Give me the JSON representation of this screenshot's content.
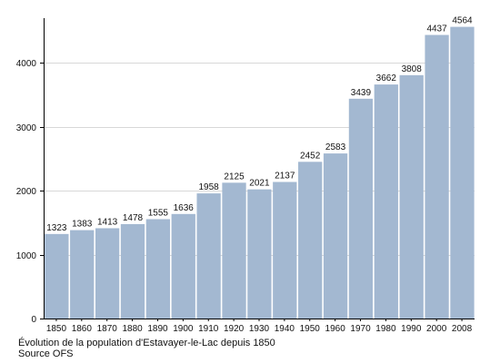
{
  "chart_data": {
    "type": "bar",
    "categories": [
      "1850",
      "1860",
      "1870",
      "1880",
      "1890",
      "1900",
      "1910",
      "1920",
      "1930",
      "1940",
      "1950",
      "1960",
      "1970",
      "1980",
      "1990",
      "2000",
      "2008"
    ],
    "values": [
      1323,
      1383,
      1413,
      1478,
      1555,
      1636,
      1958,
      2125,
      2021,
      2137,
      2452,
      2583,
      3439,
      3662,
      3808,
      4437,
      4564
    ],
    "ylim": [
      0,
      4700
    ],
    "yticks": [
      0,
      1000,
      2000,
      3000,
      4000
    ],
    "grid": true,
    "title": "",
    "xlabel": "",
    "ylabel": "",
    "bar_color": "#a3b8d1",
    "grid_color": "#d8d8d8",
    "axis_color": "#000000"
  },
  "captions": {
    "line1": "Évolution de la population d'Estavayer-le-Lac depuis 1850",
    "line2": "Source OFS"
  }
}
